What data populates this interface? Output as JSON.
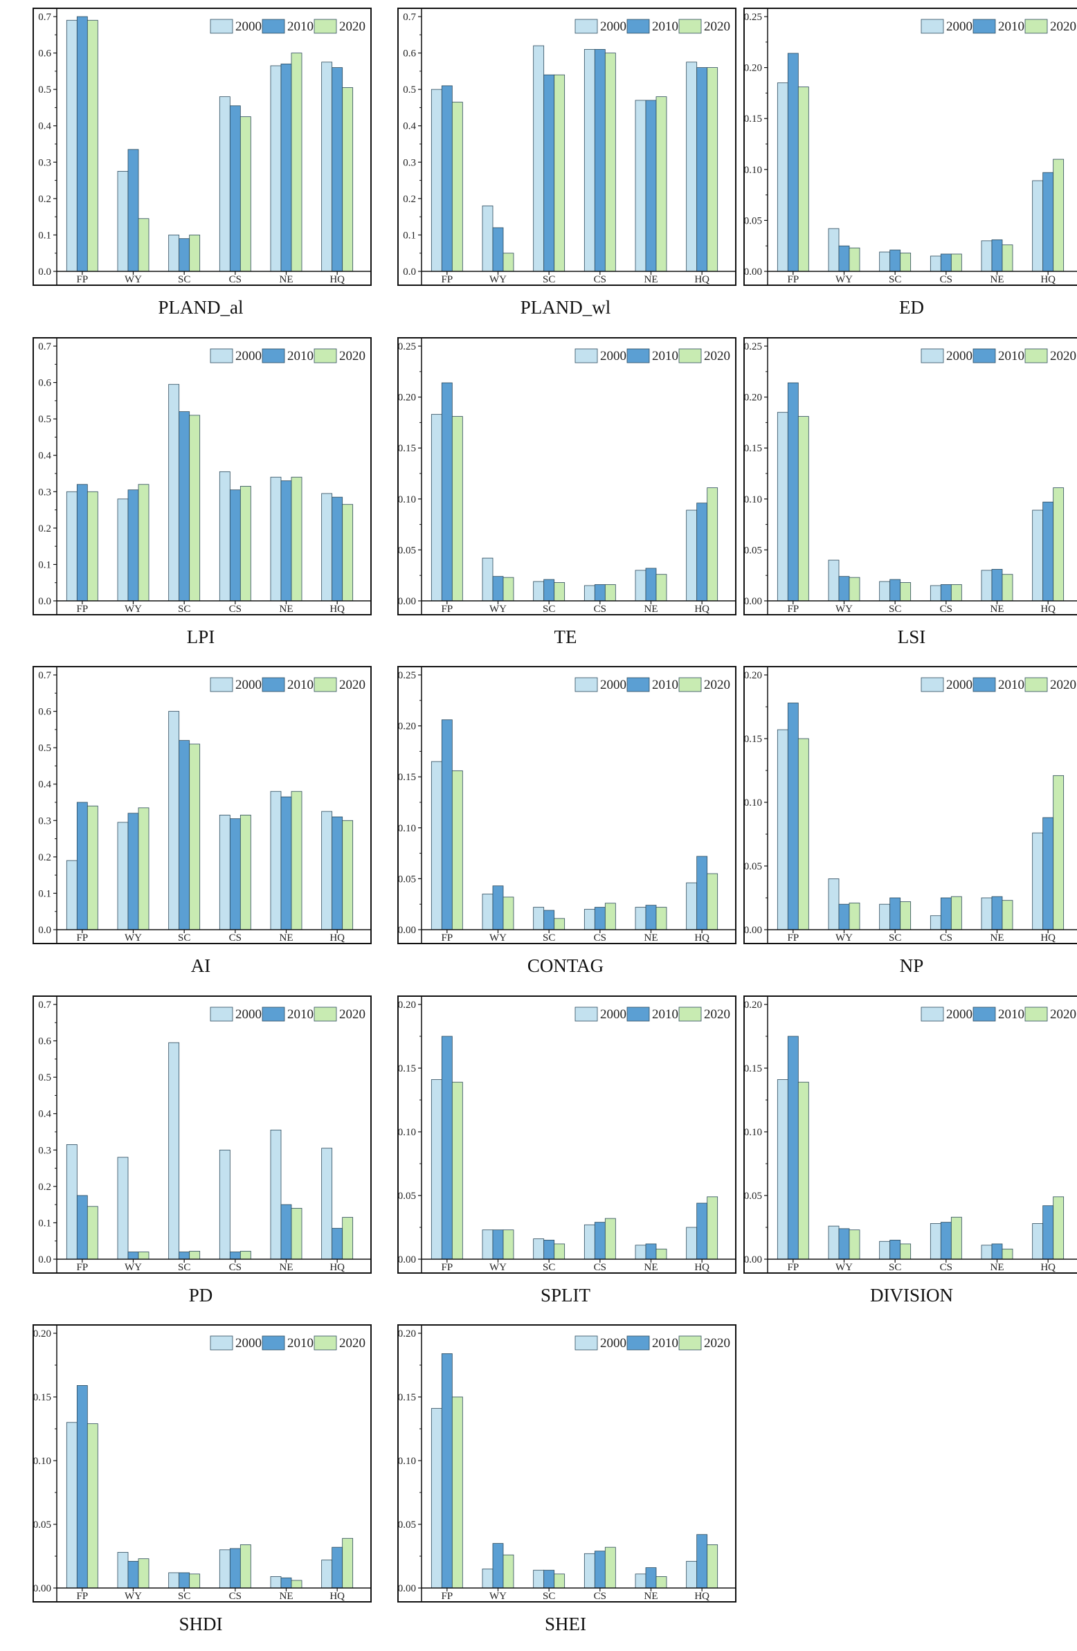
{
  "colors": {
    "2000": "#c3e1ef",
    "2010": "#5b9fd3",
    "2020": "#c8ebb2"
  },
  "legend": [
    "2000",
    "2010",
    "2020"
  ],
  "chart_data": [
    {
      "type": "bar",
      "title": "PLAND_al",
      "categories": [
        "FP",
        "WY",
        "SC",
        "CS",
        "NE",
        "HQ"
      ],
      "ylim": [
        0,
        0.7
      ],
      "yticks": [
        "0.0",
        "0.1",
        "0.2",
        "0.3",
        "0.4",
        "0.5",
        "0.6",
        "0.7"
      ],
      "series": [
        {
          "name": "2000",
          "values": [
            0.69,
            0.275,
            0.1,
            0.48,
            0.565,
            0.575
          ]
        },
        {
          "name": "2010",
          "values": [
            0.7,
            0.335,
            0.09,
            0.455,
            0.57,
            0.56
          ]
        },
        {
          "name": "2020",
          "values": [
            0.69,
            0.145,
            0.1,
            0.425,
            0.6,
            0.505
          ]
        }
      ]
    },
    {
      "type": "bar",
      "title": "PLAND_wl",
      "categories": [
        "FP",
        "WY",
        "SC",
        "CS",
        "NE",
        "HQ"
      ],
      "ylim": [
        0,
        0.7
      ],
      "yticks": [
        "0.0",
        "0.1",
        "0.2",
        "0.3",
        "0.4",
        "0.5",
        "0.6",
        "0.7"
      ],
      "series": [
        {
          "name": "2000",
          "values": [
            0.5,
            0.18,
            0.62,
            0.61,
            0.47,
            0.575
          ]
        },
        {
          "name": "2010",
          "values": [
            0.51,
            0.12,
            0.54,
            0.61,
            0.47,
            0.56
          ]
        },
        {
          "name": "2020",
          "values": [
            0.465,
            0.05,
            0.54,
            0.6,
            0.48,
            0.56
          ]
        }
      ]
    },
    {
      "type": "bar",
      "title": "ED",
      "categories": [
        "FP",
        "WY",
        "SC",
        "CS",
        "NE",
        "HQ"
      ],
      "ylim": [
        0,
        0.25
      ],
      "yticks": [
        "0.00",
        "0.05",
        "0.10",
        "0.15",
        "0.20",
        "0.25"
      ],
      "series": [
        {
          "name": "2000",
          "values": [
            0.185,
            0.042,
            0.019,
            0.015,
            0.03,
            0.089
          ]
        },
        {
          "name": "2010",
          "values": [
            0.214,
            0.025,
            0.021,
            0.017,
            0.031,
            0.097
          ]
        },
        {
          "name": "2020",
          "values": [
            0.181,
            0.023,
            0.018,
            0.017,
            0.026,
            0.11
          ]
        }
      ]
    },
    {
      "type": "bar",
      "title": "LPI",
      "categories": [
        "FP",
        "WY",
        "SC",
        "CS",
        "NE",
        "HQ"
      ],
      "ylim": [
        0,
        0.7
      ],
      "yticks": [
        "0.0",
        "0.1",
        "0.2",
        "0.3",
        "0.4",
        "0.5",
        "0.6",
        "0.7"
      ],
      "series": [
        {
          "name": "2000",
          "values": [
            0.3,
            0.28,
            0.595,
            0.355,
            0.34,
            0.295
          ]
        },
        {
          "name": "2010",
          "values": [
            0.32,
            0.305,
            0.52,
            0.305,
            0.33,
            0.285
          ]
        },
        {
          "name": "2020",
          "values": [
            0.3,
            0.32,
            0.51,
            0.315,
            0.34,
            0.265
          ]
        }
      ]
    },
    {
      "type": "bar",
      "title": "TE",
      "categories": [
        "FP",
        "WY",
        "SC",
        "CS",
        "NE",
        "HQ"
      ],
      "ylim": [
        0,
        0.25
      ],
      "yticks": [
        "0.00",
        "0.05",
        "0.10",
        "0.15",
        "0.20",
        "0.25"
      ],
      "series": [
        {
          "name": "2000",
          "values": [
            0.183,
            0.042,
            0.019,
            0.015,
            0.03,
            0.089
          ]
        },
        {
          "name": "2010",
          "values": [
            0.214,
            0.024,
            0.021,
            0.016,
            0.032,
            0.096
          ]
        },
        {
          "name": "2020",
          "values": [
            0.181,
            0.023,
            0.018,
            0.016,
            0.026,
            0.111
          ]
        }
      ]
    },
    {
      "type": "bar",
      "title": "LSI",
      "categories": [
        "FP",
        "WY",
        "SC",
        "CS",
        "NE",
        "HQ"
      ],
      "ylim": [
        0,
        0.25
      ],
      "yticks": [
        "0.00",
        "0.05",
        "0.10",
        "0.15",
        "0.20",
        "0.25"
      ],
      "series": [
        {
          "name": "2000",
          "values": [
            0.185,
            0.04,
            0.019,
            0.015,
            0.03,
            0.089
          ]
        },
        {
          "name": "2010",
          "values": [
            0.214,
            0.024,
            0.021,
            0.016,
            0.031,
            0.097
          ]
        },
        {
          "name": "2020",
          "values": [
            0.181,
            0.023,
            0.018,
            0.016,
            0.026,
            0.111
          ]
        }
      ]
    },
    {
      "type": "bar",
      "title": "AI",
      "categories": [
        "FP",
        "WY",
        "SC",
        "CS",
        "NE",
        "HQ"
      ],
      "ylim": [
        0,
        0.7
      ],
      "yticks": [
        "0.0",
        "0.1",
        "0.2",
        "0.3",
        "0.4",
        "0.5",
        "0.6",
        "0.7"
      ],
      "series": [
        {
          "name": "2000",
          "values": [
            0.19,
            0.295,
            0.6,
            0.315,
            0.38,
            0.325
          ]
        },
        {
          "name": "2010",
          "values": [
            0.35,
            0.32,
            0.52,
            0.305,
            0.365,
            0.31
          ]
        },
        {
          "name": "2020",
          "values": [
            0.34,
            0.335,
            0.51,
            0.315,
            0.38,
            0.3
          ]
        }
      ]
    },
    {
      "type": "bar",
      "title": "CONTAG",
      "categories": [
        "FP",
        "WY",
        "SC",
        "CS",
        "NE",
        "HQ"
      ],
      "ylim": [
        0,
        0.25
      ],
      "yticks": [
        "0.00",
        "0.05",
        "0.10",
        "0.15",
        "0.20",
        "0.25"
      ],
      "series": [
        {
          "name": "2000",
          "values": [
            0.165,
            0.035,
            0.022,
            0.02,
            0.022,
            0.046
          ]
        },
        {
          "name": "2010",
          "values": [
            0.206,
            0.043,
            0.019,
            0.022,
            0.024,
            0.072
          ]
        },
        {
          "name": "2020",
          "values": [
            0.156,
            0.032,
            0.011,
            0.026,
            0.022,
            0.055
          ]
        }
      ]
    },
    {
      "type": "bar",
      "title": "NP",
      "categories": [
        "FP",
        "WY",
        "SC",
        "CS",
        "NE",
        "HQ"
      ],
      "ylim": [
        0,
        0.2
      ],
      "yticks": [
        "0.00",
        "0.05",
        "0.10",
        "0.15",
        "0.20"
      ],
      "series": [
        {
          "name": "2000",
          "values": [
            0.157,
            0.04,
            0.02,
            0.011,
            0.025,
            0.076
          ]
        },
        {
          "name": "2010",
          "values": [
            0.178,
            0.02,
            0.025,
            0.025,
            0.026,
            0.088
          ]
        },
        {
          "name": "2020",
          "values": [
            0.15,
            0.021,
            0.022,
            0.026,
            0.023,
            0.121
          ]
        }
      ]
    },
    {
      "type": "bar",
      "title": "PD",
      "categories": [
        "FP",
        "WY",
        "SC",
        "CS",
        "NE",
        "HQ"
      ],
      "ylim": [
        0,
        0.7
      ],
      "yticks": [
        "0.0",
        "0.1",
        "0.2",
        "0.3",
        "0.4",
        "0.5",
        "0.6",
        "0.7"
      ],
      "series": [
        {
          "name": "2000",
          "values": [
            0.315,
            0.28,
            0.595,
            0.3,
            0.355,
            0.305
          ]
        },
        {
          "name": "2010",
          "values": [
            0.175,
            0.02,
            0.02,
            0.02,
            0.15,
            0.085
          ]
        },
        {
          "name": "2020",
          "values": [
            0.145,
            0.02,
            0.022,
            0.022,
            0.14,
            0.115
          ]
        }
      ]
    },
    {
      "type": "bar",
      "title": "SPLIT",
      "categories": [
        "FP",
        "WY",
        "SC",
        "CS",
        "NE",
        "HQ"
      ],
      "ylim": [
        0,
        0.2
      ],
      "yticks": [
        "0.00",
        "0.05",
        "0.10",
        "0.15",
        "0.20"
      ],
      "series": [
        {
          "name": "2000",
          "values": [
            0.141,
            0.023,
            0.016,
            0.027,
            0.011,
            0.025
          ]
        },
        {
          "name": "2010",
          "values": [
            0.175,
            0.023,
            0.015,
            0.029,
            0.012,
            0.044
          ]
        },
        {
          "name": "2020",
          "values": [
            0.139,
            0.023,
            0.012,
            0.032,
            0.008,
            0.049
          ]
        }
      ]
    },
    {
      "type": "bar",
      "title": "DIVISION",
      "categories": [
        "FP",
        "WY",
        "SC",
        "CS",
        "NE",
        "HQ"
      ],
      "ylim": [
        0,
        0.2
      ],
      "yticks": [
        "0.00",
        "0.05",
        "0.10",
        "0.15",
        "0.20"
      ],
      "series": [
        {
          "name": "2000",
          "values": [
            0.141,
            0.026,
            0.014,
            0.028,
            0.011,
            0.028
          ]
        },
        {
          "name": "2010",
          "values": [
            0.175,
            0.024,
            0.015,
            0.029,
            0.012,
            0.042
          ]
        },
        {
          "name": "2020",
          "values": [
            0.139,
            0.023,
            0.012,
            0.033,
            0.008,
            0.049
          ]
        }
      ]
    },
    {
      "type": "bar",
      "title": "SHDI",
      "categories": [
        "FP",
        "WY",
        "SC",
        "CS",
        "NE",
        "HQ"
      ],
      "ylim": [
        0,
        0.2
      ],
      "yticks": [
        "0.00",
        "0.05",
        "0.10",
        "0.15",
        "0.20"
      ],
      "series": [
        {
          "name": "2000",
          "values": [
            0.13,
            0.028,
            0.012,
            0.03,
            0.009,
            0.022
          ]
        },
        {
          "name": "2010",
          "values": [
            0.159,
            0.021,
            0.012,
            0.031,
            0.008,
            0.032
          ]
        },
        {
          "name": "2020",
          "values": [
            0.129,
            0.023,
            0.011,
            0.034,
            0.006,
            0.039
          ]
        }
      ]
    },
    {
      "type": "bar",
      "title": "SHEI",
      "categories": [
        "FP",
        "WY",
        "SC",
        "CS",
        "NE",
        "HQ"
      ],
      "ylim": [
        0,
        0.2
      ],
      "yticks": [
        "0.00",
        "0.05",
        "0.10",
        "0.15",
        "0.20"
      ],
      "series": [
        {
          "name": "2000",
          "values": [
            0.141,
            0.015,
            0.014,
            0.027,
            0.011,
            0.021
          ]
        },
        {
          "name": "2010",
          "values": [
            0.184,
            0.035,
            0.014,
            0.029,
            0.016,
            0.042
          ]
        },
        {
          "name": "2020",
          "values": [
            0.15,
            0.026,
            0.011,
            0.032,
            0.009,
            0.034
          ]
        }
      ]
    }
  ]
}
